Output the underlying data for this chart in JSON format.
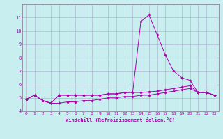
{
  "xlabel": "Windchill (Refroidissement éolien,°C)",
  "background_color": "#c8eef0",
  "grid_color": "#aaaacc",
  "line_color": "#aa00aa",
  "spine_color": "#888899",
  "xlim": [
    -0.5,
    23.5
  ],
  "ylim": [
    4,
    12
  ],
  "yticks": [
    4,
    5,
    6,
    7,
    8,
    9,
    10,
    11
  ],
  "xticks": [
    0,
    1,
    2,
    3,
    4,
    5,
    6,
    7,
    8,
    9,
    10,
    11,
    12,
    13,
    14,
    15,
    16,
    17,
    18,
    19,
    20,
    21,
    22,
    23
  ],
  "series": [
    [
      4.9,
      5.2,
      4.8,
      4.6,
      5.2,
      5.2,
      5.2,
      5.2,
      5.2,
      5.2,
      5.3,
      5.3,
      5.4,
      5.4,
      10.7,
      11.2,
      9.7,
      8.2,
      7.0,
      6.5,
      6.3,
      5.4,
      5.4,
      5.2
    ],
    [
      4.9,
      5.2,
      4.8,
      4.6,
      5.2,
      5.2,
      5.2,
      5.2,
      5.2,
      5.2,
      5.3,
      5.3,
      5.4,
      5.4,
      5.4,
      5.45,
      5.5,
      5.6,
      5.7,
      5.8,
      5.9,
      5.4,
      5.4,
      5.2
    ],
    [
      4.9,
      5.2,
      4.8,
      4.6,
      4.6,
      4.7,
      4.7,
      4.8,
      4.8,
      4.9,
      5.0,
      5.0,
      5.1,
      5.1,
      5.2,
      5.2,
      5.3,
      5.4,
      5.5,
      5.6,
      5.7,
      5.4,
      5.4,
      5.2
    ]
  ],
  "tick_fontsize": 4.5,
  "xlabel_fontsize": 5.0,
  "marker_size": 1.8,
  "linewidth": 0.7
}
